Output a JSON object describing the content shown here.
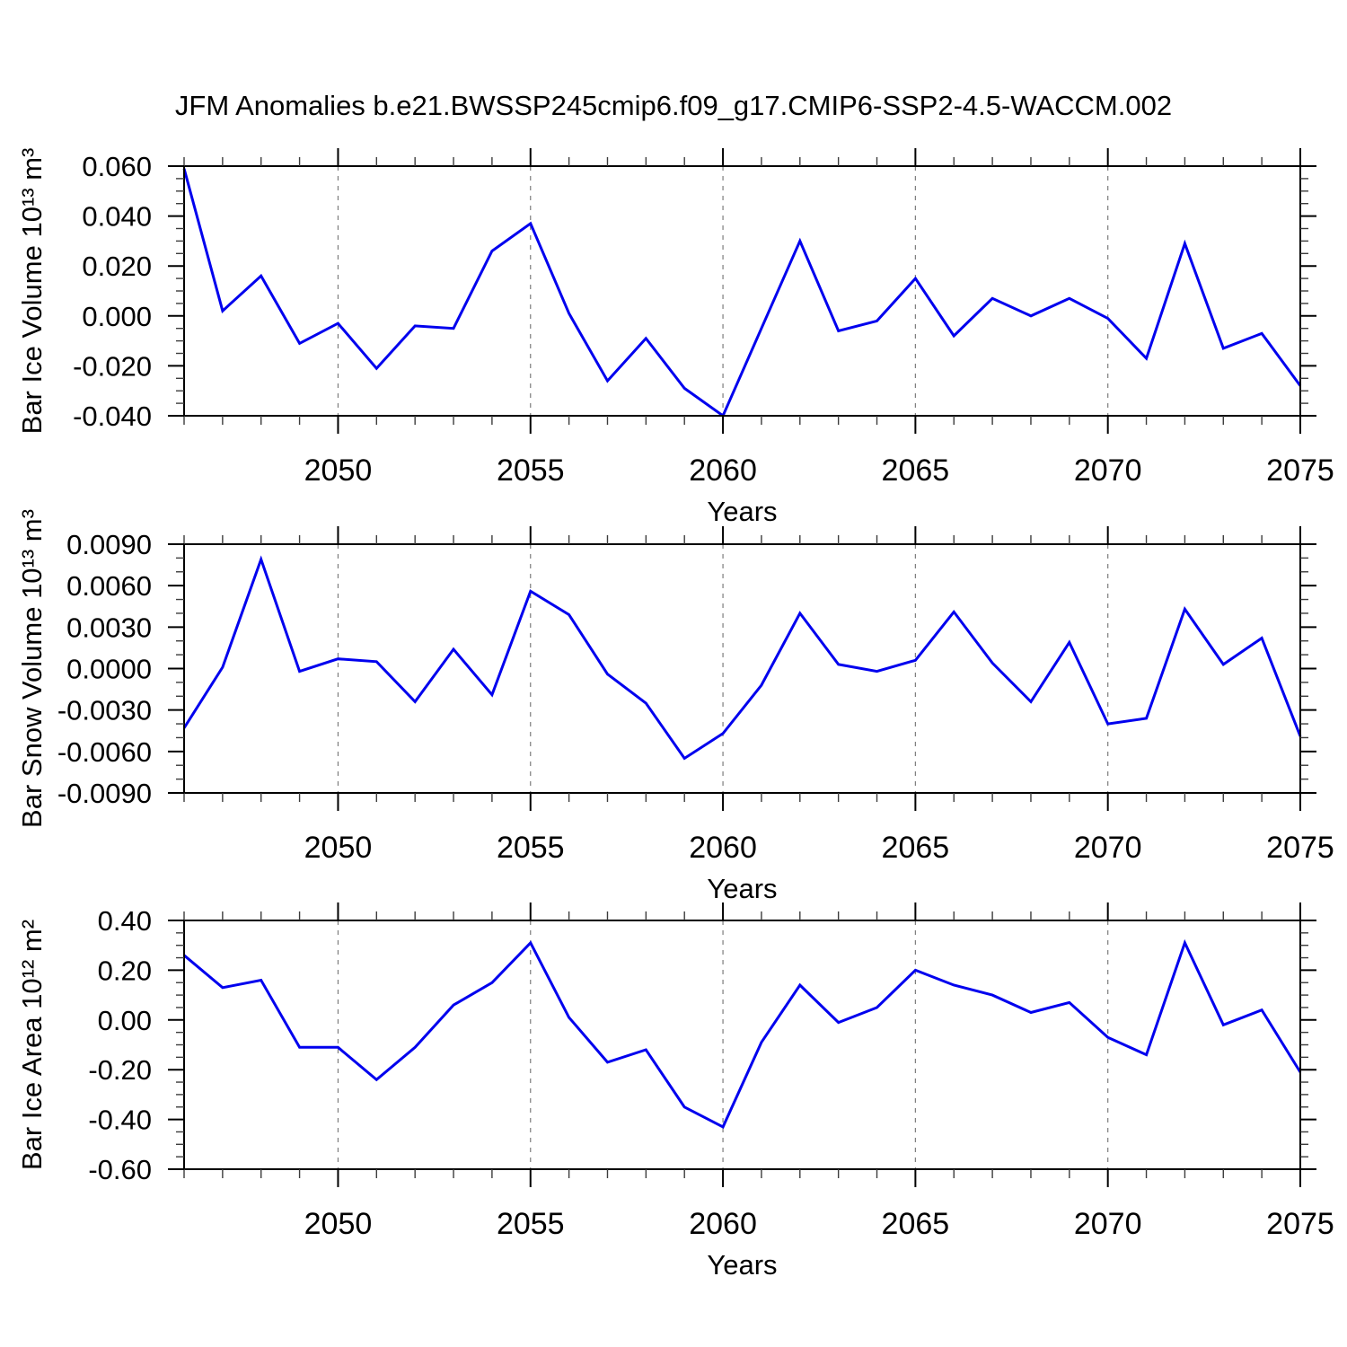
{
  "title": "JFM Anomalies b.e21.BWSSP245cmip6.f09_g17.CMIP6-SSP2-4.5-WACCM.002",
  "colors": {
    "line": "#0000ee",
    "grid": "#7d7d7d",
    "frame": "#000000",
    "minor_tick": "#3c3c3c",
    "text": "#000000",
    "background": "#ffffff"
  },
  "x_axis": {
    "label": "Years",
    "years": [
      2046,
      2047,
      2048,
      2049,
      2050,
      2051,
      2052,
      2053,
      2054,
      2055,
      2056,
      2057,
      2058,
      2059,
      2060,
      2061,
      2062,
      2063,
      2064,
      2065,
      2066,
      2067,
      2068,
      2069,
      2070,
      2071,
      2072,
      2073,
      2074,
      2075
    ],
    "major_ticks": [
      2050,
      2055,
      2060,
      2065,
      2070,
      2075
    ],
    "tick_labels": [
      "2050",
      "2055",
      "2060",
      "2065",
      "2070",
      "2075"
    ]
  },
  "chart_data": [
    {
      "type": "line",
      "title": "",
      "ylabel": "Bar Ice Volume 10¹³ m³",
      "xlabel": "Years",
      "ylim": [
        -0.04,
        0.06
      ],
      "ytick_values": [
        0.06,
        0.04,
        0.02,
        0.0,
        -0.02,
        -0.04
      ],
      "ytick_labels": [
        "0.060",
        "0.040",
        "0.020",
        "0.000",
        "-0.020",
        "-0.040"
      ],
      "y_minor_step": 0.005,
      "grid": "vertical-dashed",
      "legend": "none",
      "x": [
        2046,
        2047,
        2048,
        2049,
        2050,
        2051,
        2052,
        2053,
        2054,
        2055,
        2056,
        2057,
        2058,
        2059,
        2060,
        2061,
        2062,
        2063,
        2064,
        2065,
        2066,
        2067,
        2068,
        2069,
        2070,
        2071,
        2072,
        2073,
        2074,
        2075
      ],
      "values": [
        0.059,
        0.002,
        0.016,
        -0.011,
        -0.003,
        -0.021,
        -0.004,
        -0.005,
        0.026,
        0.037,
        0.001,
        -0.026,
        -0.009,
        -0.029,
        -0.04,
        -0.005,
        0.03,
        -0.006,
        -0.002,
        0.015,
        -0.008,
        0.007,
        0.0,
        0.007,
        -0.001,
        -0.017,
        0.029,
        -0.013,
        -0.007,
        -0.028
      ]
    },
    {
      "type": "line",
      "title": "",
      "ylabel": "Bar Snow Volume 10¹³ m³",
      "xlabel": "Years",
      "ylim": [
        -0.009,
        0.009
      ],
      "ytick_values": [
        0.009,
        0.006,
        0.003,
        0.0,
        -0.003,
        -0.006,
        -0.009
      ],
      "ytick_labels": [
        "0.0090",
        "0.0060",
        "0.0030",
        "0.0000",
        "-0.0030",
        "-0.0060",
        "-0.0090"
      ],
      "y_minor_step": 0.001,
      "grid": "vertical-dashed",
      "legend": "none",
      "x": [
        2046,
        2047,
        2048,
        2049,
        2050,
        2051,
        2052,
        2053,
        2054,
        2055,
        2056,
        2057,
        2058,
        2059,
        2060,
        2061,
        2062,
        2063,
        2064,
        2065,
        2066,
        2067,
        2068,
        2069,
        2070,
        2071,
        2072,
        2073,
        2074,
        2075
      ],
      "values": [
        -0.0043,
        0.0001,
        0.0079,
        -0.0002,
        0.0007,
        0.0005,
        -0.0024,
        0.0014,
        -0.0019,
        0.0056,
        0.0039,
        -0.0004,
        -0.0025,
        -0.0065,
        -0.0047,
        -0.0012,
        0.004,
        0.0003,
        -0.0002,
        0.0006,
        0.0041,
        0.0004,
        -0.0024,
        0.0019,
        -0.004,
        -0.0036,
        0.0043,
        0.0003,
        0.0022,
        -0.0049
      ]
    },
    {
      "type": "line",
      "title": "",
      "ylabel": "Bar Ice Area 10¹² m²",
      "xlabel": "Years",
      "ylim": [
        -0.6,
        0.4
      ],
      "ytick_values": [
        0.4,
        0.2,
        0.0,
        -0.2,
        -0.4,
        -0.6
      ],
      "ytick_labels": [
        "0.40",
        "0.20",
        "0.00",
        "-0.20",
        "-0.40",
        "-0.60"
      ],
      "y_minor_step": 0.05,
      "grid": "vertical-dashed",
      "legend": "none",
      "x": [
        2046,
        2047,
        2048,
        2049,
        2050,
        2051,
        2052,
        2053,
        2054,
        2055,
        2056,
        2057,
        2058,
        2059,
        2060,
        2061,
        2062,
        2063,
        2064,
        2065,
        2066,
        2067,
        2068,
        2069,
        2070,
        2071,
        2072,
        2073,
        2074,
        2075
      ],
      "values": [
        0.26,
        0.13,
        0.16,
        -0.11,
        -0.11,
        -0.24,
        -0.11,
        0.06,
        0.15,
        0.31,
        0.01,
        -0.17,
        -0.12,
        -0.35,
        -0.43,
        -0.09,
        0.14,
        -0.01,
        0.05,
        0.2,
        0.14,
        0.1,
        0.03,
        0.07,
        -0.07,
        -0.14,
        0.31,
        -0.02,
        0.04,
        -0.21
      ]
    }
  ]
}
